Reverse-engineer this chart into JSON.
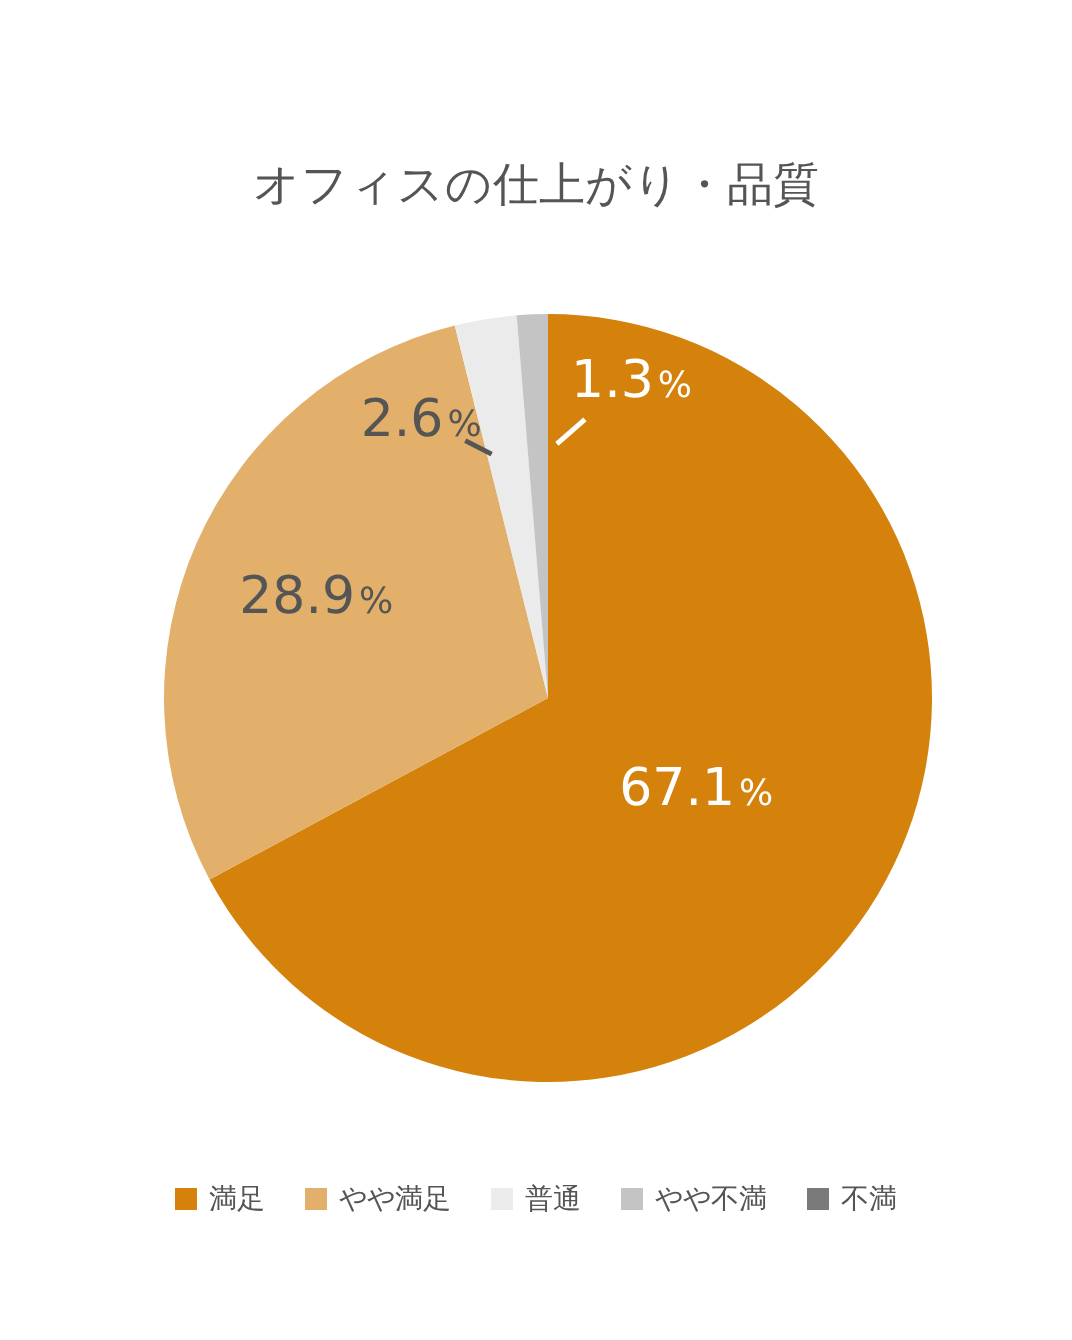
{
  "chart_data": {
    "type": "pie",
    "title": "オフィスの仕上がり・品質",
    "categories": [
      "満足",
      "やや満足",
      "普通",
      "やや不満",
      "不満"
    ],
    "values": [
      67.1,
      28.9,
      2.6,
      1.3,
      0
    ],
    "colors": [
      "#d4820c",
      "#e2b06a",
      "#ebebeb",
      "#c4c4c4",
      "#7a7a7a"
    ],
    "value_labels": [
      "67.1%",
      "28.9%",
      "2.6%",
      "1.3%",
      null
    ],
    "legend": "bottom"
  }
}
